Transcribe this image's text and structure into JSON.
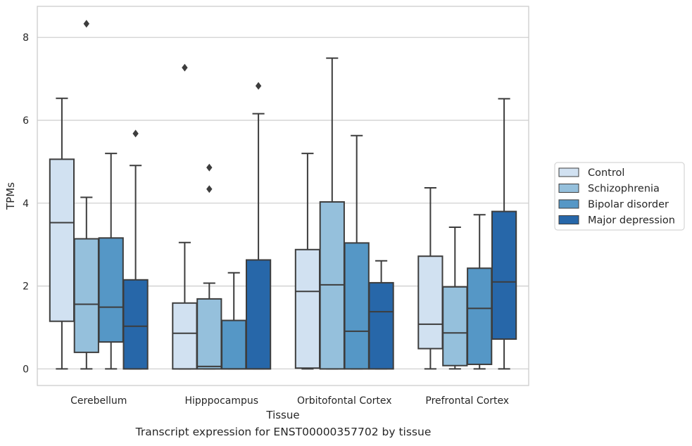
{
  "chart_data": {
    "type": "box",
    "xlabel": "Tissue",
    "ylabel": "TPMs",
    "ylim": [
      -0.4,
      8.75
    ],
    "y_ticks": [
      0,
      2,
      4,
      6,
      8
    ],
    "grid": "horizontal",
    "legend_placement": "right, outside",
    "categories": [
      "Cerebellum",
      "Hipppocampus",
      "Orbitofontal Cortex",
      "Prefrontal Cortex"
    ],
    "series": [
      {
        "name": "Control",
        "color": "#d1e1f1",
        "boxes": [
          {
            "whisker_low": 0,
            "q1": 1.15,
            "median": 3.53,
            "q3": 5.06,
            "whisker_high": 6.53,
            "outliers": []
          },
          {
            "whisker_low": 0,
            "q1": 0.0,
            "median": 0.86,
            "q3": 1.59,
            "whisker_high": 3.05,
            "outliers": [
              7.27
            ]
          },
          {
            "whisker_low": 0,
            "q1": 0.02,
            "median": 1.87,
            "q3": 2.88,
            "whisker_high": 5.2,
            "outliers": []
          },
          {
            "whisker_low": 0,
            "q1": 0.49,
            "median": 1.08,
            "q3": 2.72,
            "whisker_high": 4.37,
            "outliers": []
          }
        ]
      },
      {
        "name": "Schizophrenia",
        "color": "#95c0dc",
        "boxes": [
          {
            "whisker_low": 0,
            "q1": 0.4,
            "median": 1.56,
            "q3": 3.14,
            "whisker_high": 4.14,
            "outliers": [
              8.33
            ]
          },
          {
            "whisker_low": 0,
            "q1": 0.0,
            "median": 0.06,
            "q3": 1.69,
            "whisker_high": 2.07,
            "outliers": [
              4.34,
              4.86
            ]
          },
          {
            "whisker_low": 0,
            "q1": 0.0,
            "median": 2.03,
            "q3": 4.03,
            "whisker_high": 7.5,
            "outliers": []
          },
          {
            "whisker_low": 0,
            "q1": 0.08,
            "median": 0.87,
            "q3": 1.98,
            "whisker_high": 3.42,
            "outliers": []
          }
        ]
      },
      {
        "name": "Bipolar disorder",
        "color": "#5597c6",
        "boxes": [
          {
            "whisker_low": 0,
            "q1": 0.65,
            "median": 1.49,
            "q3": 3.16,
            "whisker_high": 5.2,
            "outliers": []
          },
          {
            "whisker_low": 0,
            "q1": 0.0,
            "median": 0.0,
            "q3": 1.17,
            "whisker_high": 2.32,
            "outliers": []
          },
          {
            "whisker_low": 0,
            "q1": 0.0,
            "median": 0.91,
            "q3": 3.04,
            "whisker_high": 5.63,
            "outliers": []
          },
          {
            "whisker_low": 0,
            "q1": 0.11,
            "median": 1.46,
            "q3": 2.43,
            "whisker_high": 3.72,
            "outliers": []
          }
        ]
      },
      {
        "name": "Major depression",
        "color": "#2767a9",
        "boxes": [
          {
            "whisker_low": 0,
            "q1": 0.0,
            "median": 1.03,
            "q3": 2.15,
            "whisker_high": 4.91,
            "outliers": [
              5.68
            ]
          },
          {
            "whisker_low": 0,
            "q1": 0.0,
            "median": 0.0,
            "q3": 2.63,
            "whisker_high": 6.16,
            "outliers": [
              6.83
            ]
          },
          {
            "whisker_low": 0,
            "q1": 0.0,
            "median": 1.38,
            "q3": 2.08,
            "whisker_high": 2.61,
            "outliers": []
          },
          {
            "whisker_low": 0,
            "q1": 0.72,
            "median": 2.1,
            "q3": 3.8,
            "whisker_high": 6.52,
            "outliers": []
          }
        ]
      }
    ],
    "caption": "Transcript expression for ENST00000357702 by tissue"
  }
}
